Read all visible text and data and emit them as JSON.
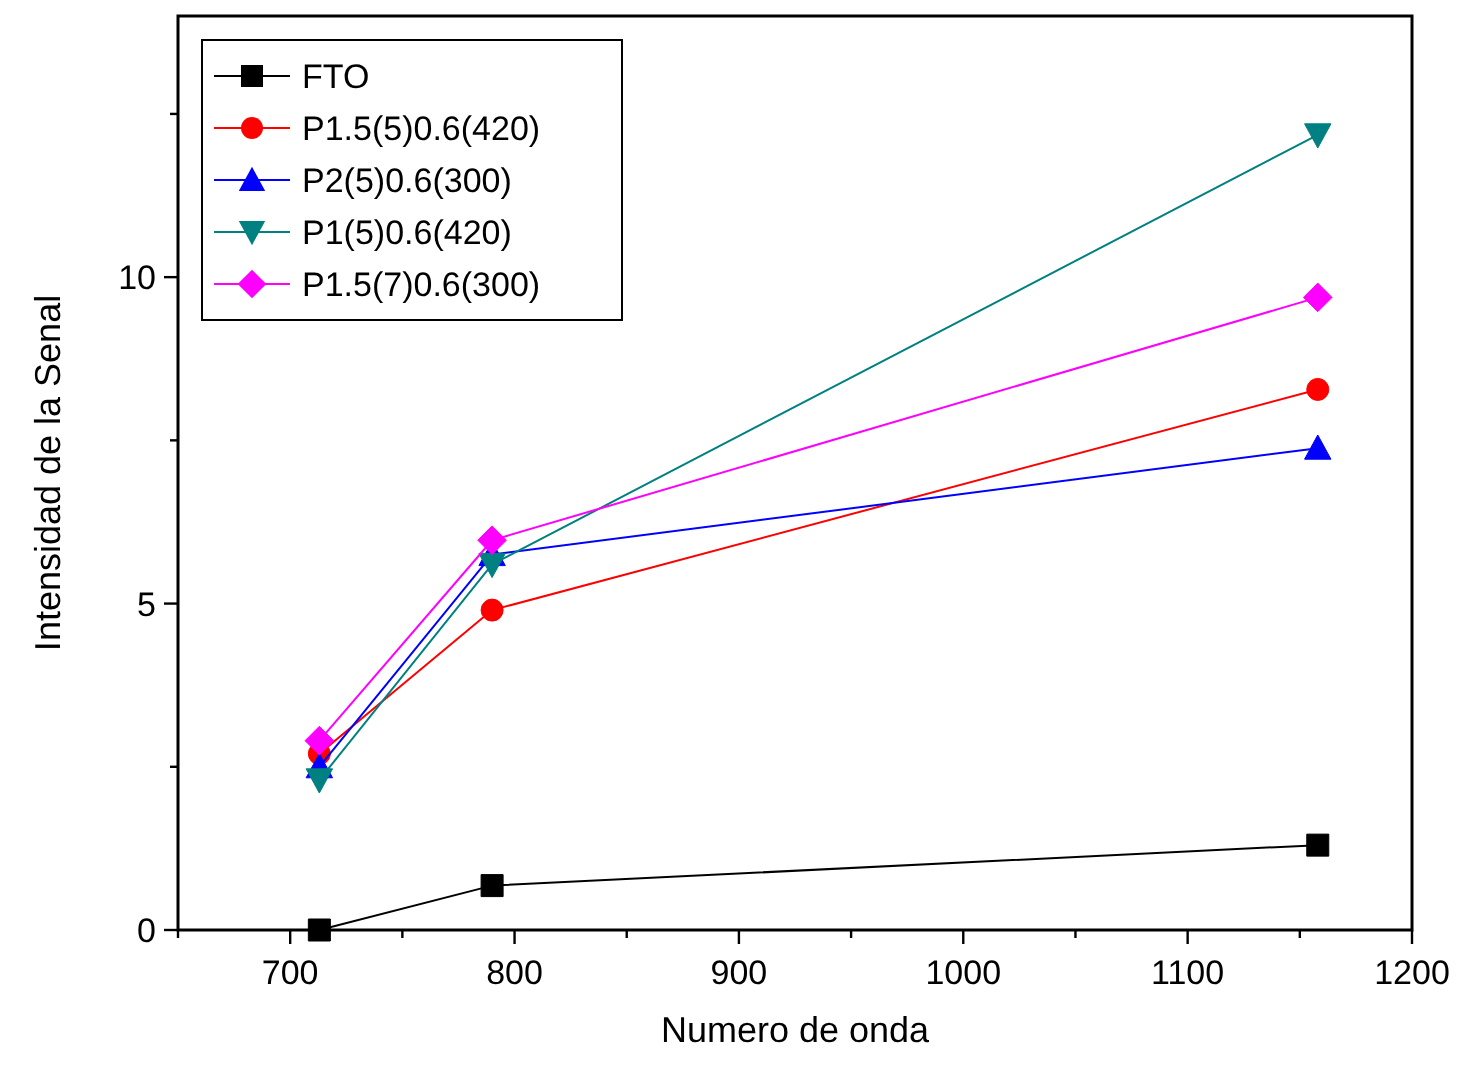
{
  "chart_data": {
    "type": "line",
    "xlabel": "Numero de onda",
    "ylabel": "Intensidad de la Senal",
    "x": [
      713,
      790,
      1158
    ],
    "xlim": [
      650,
      1200
    ],
    "xticks": [
      {
        "value": 650,
        "label": null
      },
      700,
      {
        "value": 750,
        "label": null
      },
      800,
      {
        "value": 850,
        "label": null
      },
      900,
      {
        "value": 950,
        "label": null
      },
      1000,
      {
        "value": 1050,
        "label": null
      },
      1100,
      {
        "value": 1150,
        "label": null
      },
      1200
    ],
    "ylim": [
      0,
      14
    ],
    "yticks": [
      0,
      {
        "value": 2.5,
        "label": null
      },
      5,
      {
        "value": 7.5,
        "label": null
      },
      10,
      {
        "value": 12.5,
        "label": null
      }
    ],
    "grid": false,
    "legend": "top left",
    "line_style": "solid",
    "series": [
      {
        "name": "FTO",
        "color": "#000000",
        "marker": "square",
        "values": [
          0,
          0.68,
          1.3
        ]
      },
      {
        "name": "P1.5(5)0.6(420)",
        "color": "#ff0000",
        "marker": "circle",
        "values": [
          2.7,
          4.9,
          8.28
        ]
      },
      {
        "name": "P2(5)0.6(300)",
        "color": "#0000ff",
        "marker": "triangle",
        "values": [
          2.5,
          5.75,
          7.38
        ]
      },
      {
        "name": "P1(5)0.6(420)",
        "color": "#008080",
        "marker": "triangle_down",
        "values": [
          2.3,
          5.6,
          12.18
        ]
      },
      {
        "name": "P1.5(7)0.6(300)",
        "color": "#ff00ff",
        "marker": "diamond",
        "values": [
          2.9,
          5.97,
          9.69
        ]
      }
    ]
  }
}
